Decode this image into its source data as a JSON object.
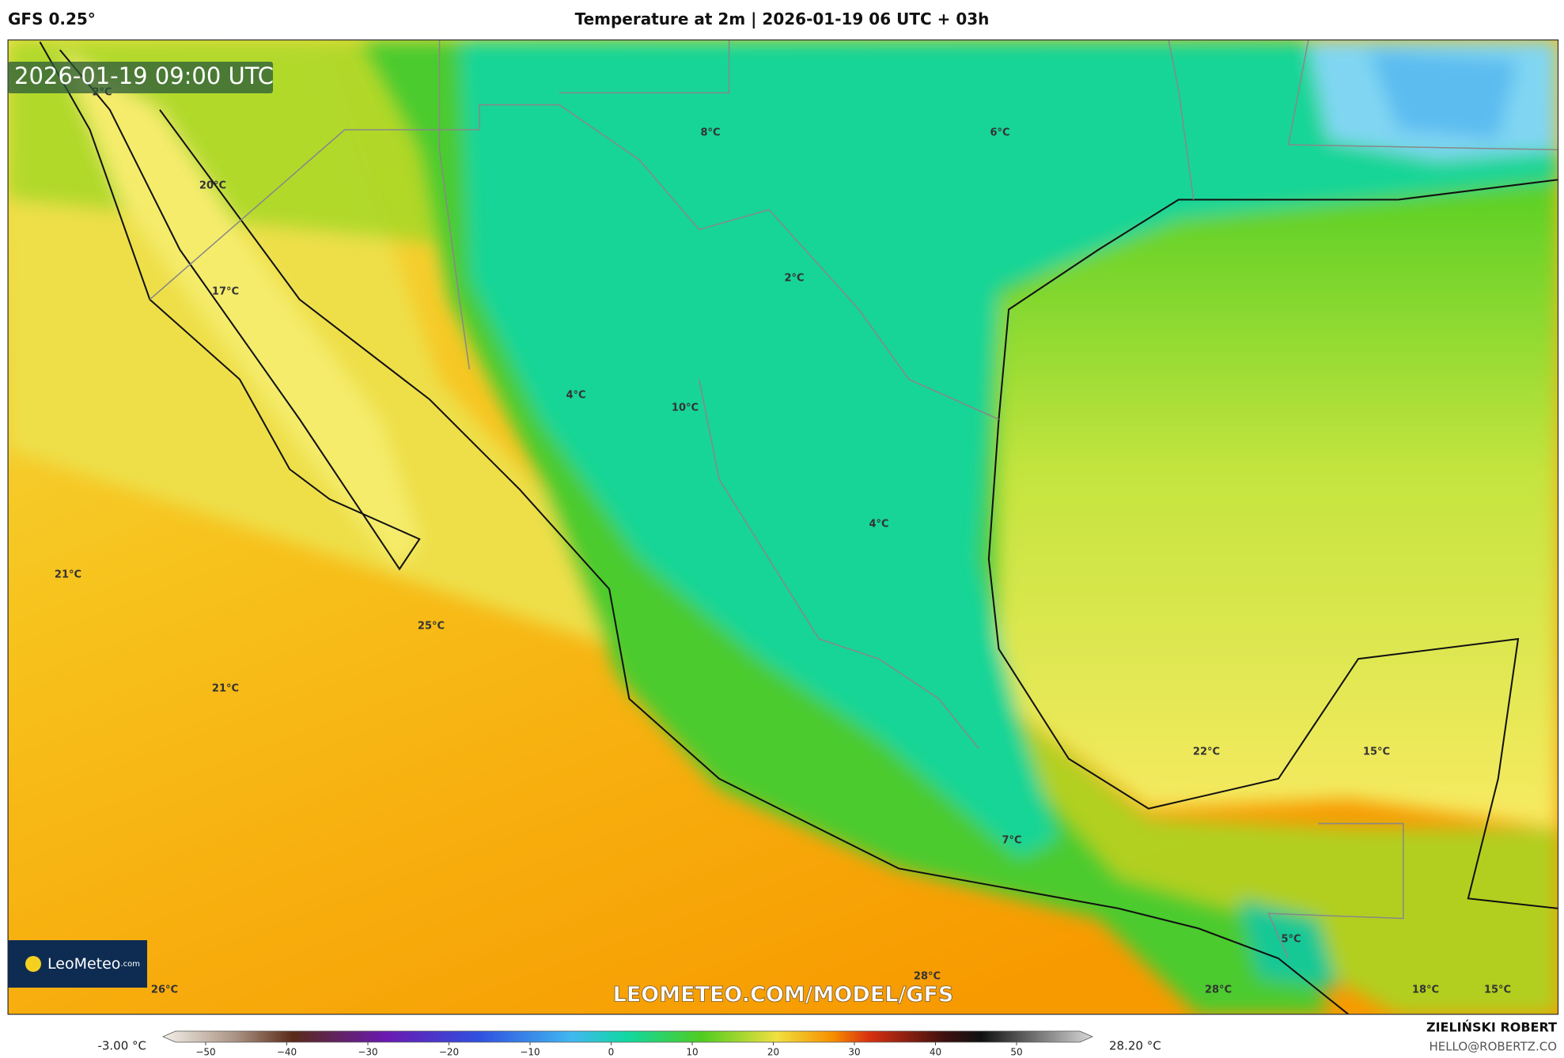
{
  "header": {
    "model": "GFS 0.25°",
    "title": "Temperature at 2m | 2026-01-19 06 UTC + 03h"
  },
  "map": {
    "timestamp": "2026-01-19 09:00 UTC",
    "logo": "LeoMeteo",
    "logo_suffix": ".com",
    "watermark": "LEOMETEO.COM/MODEL/GFS",
    "labels": [
      "2°C",
      "8°C",
      "6°C",
      "20°C",
      "2°C",
      "17°C",
      "4°C",
      "10°C",
      "4°C",
      "21°C",
      "25°C",
      "21°C",
      "22°C",
      "15°C",
      "7°C",
      "5°C",
      "28°C",
      "26°C",
      "28°C",
      "18°C",
      "15°C"
    ]
  },
  "colorbar": {
    "min_label": "-3.00 °C",
    "max_label": "28.20 °C",
    "ticks": [
      "−50",
      "−40",
      "−30",
      "−20",
      "−10",
      "0",
      "10",
      "20",
      "30",
      "40",
      "50"
    ]
  },
  "footer": {
    "author": "ZIELIŃSKI ROBERT",
    "contact": "HELLO@ROBERTZ.CO"
  }
}
